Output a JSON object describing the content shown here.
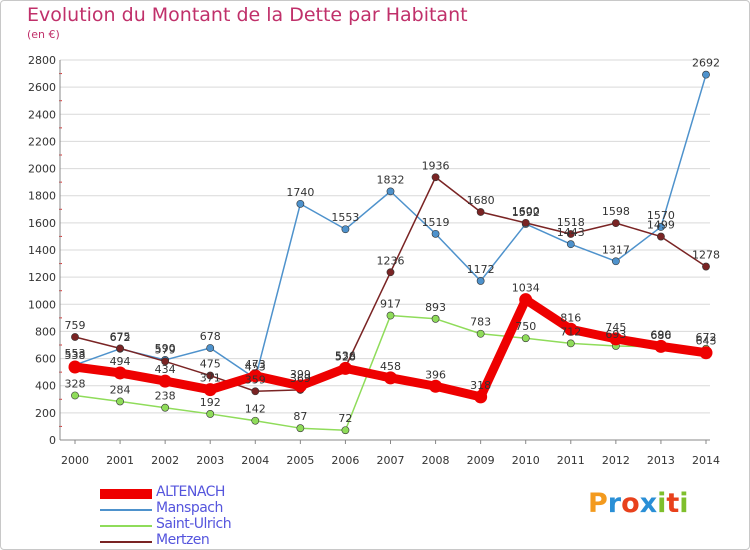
{
  "title": "Evolution du Montant de la Dette par Habitant",
  "subtitle": "(en €)",
  "logo": {
    "text": "Proxiti",
    "colors": [
      "#f39a1e",
      "#2a8fd6",
      "#e8411c",
      "#2a8fd6",
      "#7fbf2c",
      "#e8411c",
      "#7fbf2c"
    ]
  },
  "chart_data": {
    "type": "line",
    "title": "Evolution du Montant de la Dette par Habitant",
    "subtitle": "(en €)",
    "xlabel": "",
    "ylabel": "",
    "x": [
      "2000",
      "2001",
      "2002",
      "2003",
      "2004",
      "2005",
      "2006",
      "2007",
      "2008",
      "2009",
      "2010",
      "2011",
      "2012",
      "2013",
      "2014"
    ],
    "ylim": [
      0,
      2800
    ],
    "yticks": [
      "0",
      "200",
      "400",
      "600",
      "800",
      "1000",
      "1200",
      "1400",
      "1600",
      "1800",
      "2000",
      "2200",
      "2400",
      "2600",
      "2800"
    ],
    "grid": "horizontal",
    "legend_position": "bottom-left",
    "series": [
      {
        "name": "ALTENACH",
        "color": "#ee0000",
        "values": [
          538,
          494,
          434,
          371,
          473,
          399,
          528,
          458,
          396,
          318,
          1034,
          816,
          745,
          690,
          643
        ]
      },
      {
        "name": "Manspach",
        "color": "#4e92cc",
        "values": [
          553,
          672,
          590,
          678,
          453,
          1740,
          1553,
          1832,
          1519,
          1172,
          1592,
          1443,
          1317,
          1570,
          2692
        ]
      },
      {
        "name": "Saint-Ulrich",
        "color": "#8fdc5a",
        "values": [
          328,
          284,
          238,
          192,
          142,
          87,
          72,
          917,
          893,
          783,
          750,
          712,
          693,
          686,
          672
        ]
      },
      {
        "name": "Mertzen",
        "color": "#7a2424",
        "values": [
          759,
          675,
          579,
          475,
          359,
          369,
          536,
          1236,
          1936,
          1680,
          1600,
          1518,
          1598,
          1499,
          1278
        ]
      }
    ]
  }
}
